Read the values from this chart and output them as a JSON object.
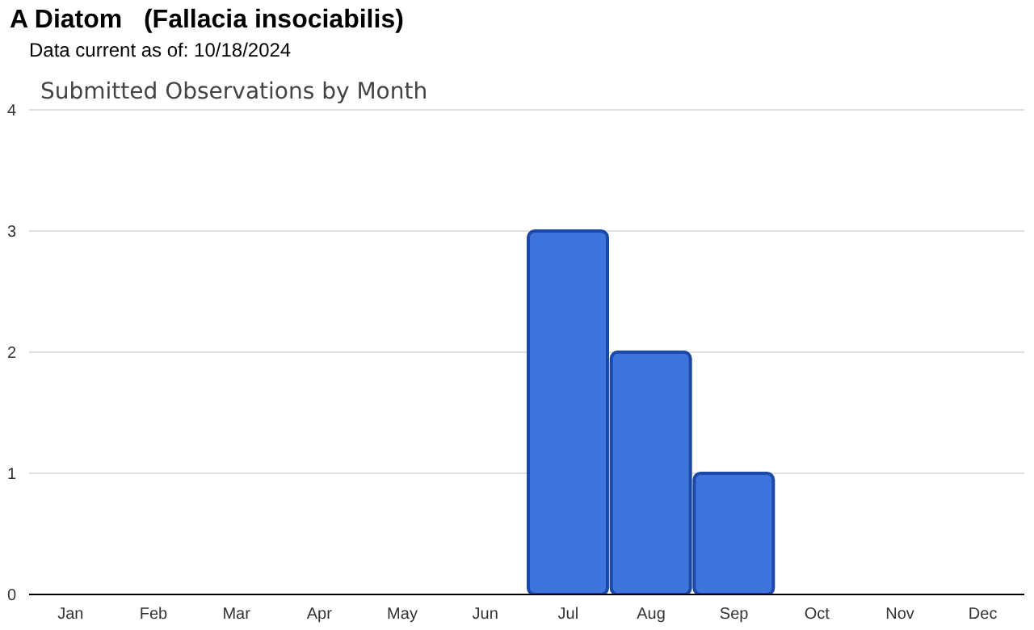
{
  "chart_data": {
    "type": "bar",
    "title": "A Diatom   (Fallacia insociabilis)",
    "subtitle": "Data current as of: 10/18/2024",
    "annotations": [
      "Submitted Observations by Month"
    ],
    "categories": [
      "Jan",
      "Feb",
      "Mar",
      "Apr",
      "May",
      "Jun",
      "Jul",
      "Aug",
      "Sep",
      "Oct",
      "Nov",
      "Dec"
    ],
    "values": [
      0,
      0,
      0,
      0,
      0,
      0,
      3,
      2,
      1,
      0,
      0,
      0
    ],
    "color": "#3f74dc",
    "ylim": [
      0,
      4
    ],
    "yticks": [
      0,
      1,
      2,
      3,
      4
    ],
    "grid": "y",
    "legend": false
  }
}
